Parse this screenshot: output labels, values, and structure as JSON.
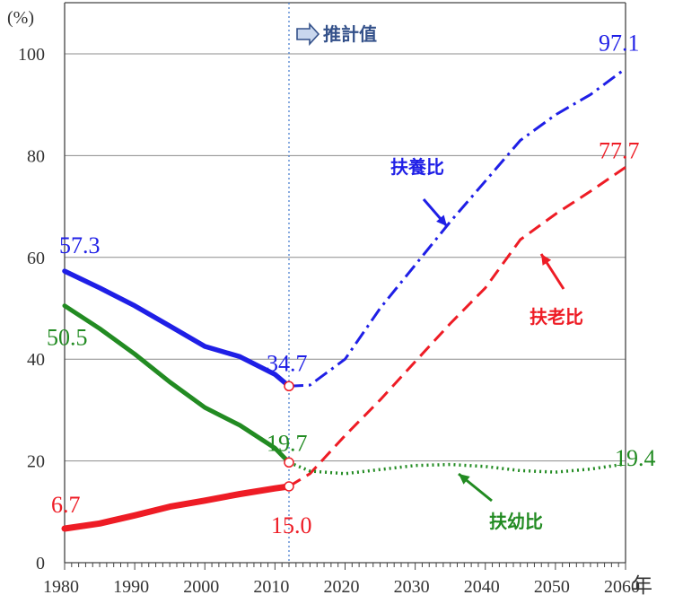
{
  "chart_data": {
    "type": "line",
    "title": "",
    "xlabel": "年",
    "ylabel": "(%)",
    "xlim": [
      1980,
      2060
    ],
    "ylim": [
      0,
      100
    ],
    "xticks": [
      1980,
      1990,
      2000,
      2010,
      2020,
      2030,
      2040,
      2050,
      2060
    ],
    "yticks": [
      0,
      20,
      40,
      60,
      80,
      100
    ],
    "grid": true,
    "projection_start": 2012,
    "projection_label": "推計值",
    "series": [
      {
        "name": "扶養比",
        "color": "#1f1fe6",
        "x": [
          1980,
          1985,
          1990,
          1995,
          2000,
          2005,
          2010,
          2012,
          2015,
          2020,
          2025,
          2030,
          2035,
          2040,
          2045,
          2050,
          2055,
          2060
        ],
        "values": [
          57.3,
          54.0,
          50.5,
          46.5,
          42.5,
          40.5,
          37.0,
          34.7,
          34.9,
          40.0,
          50.0,
          58.5,
          67.0,
          75.0,
          83.0,
          88.0,
          92.0,
          97.1
        ],
        "labels": [
          {
            "x": 1980,
            "text": "57.3"
          },
          {
            "x": 2012,
            "text": "34.7"
          },
          {
            "x": 2060,
            "text": "97.1"
          }
        ]
      },
      {
        "name": "扶老比",
        "color": "#ee1c25",
        "x": [
          1980,
          1985,
          1990,
          1995,
          2000,
          2005,
          2010,
          2012,
          2015,
          2020,
          2025,
          2030,
          2035,
          2040,
          2045,
          2050,
          2055,
          2060
        ],
        "values": [
          6.7,
          7.7,
          9.3,
          11.0,
          12.2,
          13.5,
          14.6,
          15.0,
          17.5,
          25.0,
          32.0,
          39.5,
          47.0,
          54.0,
          63.5,
          68.5,
          73.0,
          77.7
        ],
        "labels": [
          {
            "x": 1980,
            "text": "6.7"
          },
          {
            "x": 2012,
            "text": "15.0"
          },
          {
            "x": 2060,
            "text": "77.7"
          }
        ]
      },
      {
        "name": "扶幼比",
        "color": "#228b22",
        "x": [
          1980,
          1985,
          1990,
          1995,
          2000,
          2005,
          2010,
          2012,
          2015,
          2020,
          2025,
          2030,
          2035,
          2040,
          2045,
          2050,
          2055,
          2060
        ],
        "values": [
          50.5,
          46.0,
          41.0,
          35.5,
          30.5,
          27.0,
          22.5,
          19.7,
          18.0,
          17.5,
          18.3,
          19.1,
          19.3,
          18.9,
          18.1,
          17.8,
          18.4,
          19.4
        ],
        "labels": [
          {
            "x": 1980,
            "text": "50.5"
          },
          {
            "x": 2012,
            "text": "19.7"
          },
          {
            "x": 2060,
            "text": "19.4"
          }
        ]
      }
    ]
  }
}
